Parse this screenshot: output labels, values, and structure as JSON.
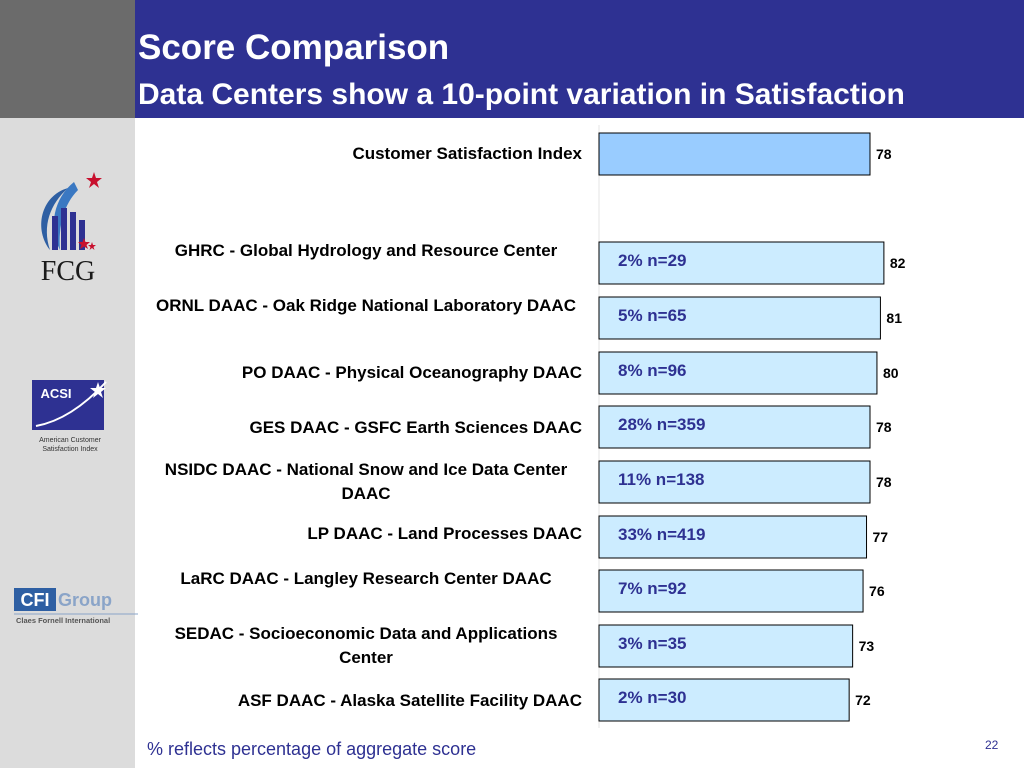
{
  "slide": {
    "title": "Score Comparison",
    "subtitle": "Data Centers show a 10-point variation in Satisfaction",
    "footnote": "% reflects percentage of aggregate score",
    "page_number": "22",
    "logos": {
      "fcg": "FCG",
      "acsi": "ACSI",
      "acsi_caption_1": "American Customer",
      "acsi_caption_2": "Satisfaction Index",
      "cfi_1": "CFI",
      "cfi_2": "Group",
      "cfi_caption": "Claes Fornell International"
    }
  },
  "colors": {
    "header": "#2e3192",
    "sidebar": "#dcdcdc",
    "csi_bar": "#99ccff",
    "center_bar": "#ccecff",
    "bar_border": "#000000",
    "inner_label": "#2e3192"
  },
  "chart_data": {
    "type": "bar",
    "orientation": "horizontal",
    "categories": [
      "Customer Satisfaction Index",
      "GHRC - Global Hydrology and Resource Center",
      "ORNL DAAC - Oak Ridge National Laboratory DAAC",
      "PO DAAC - Physical Oceanography DAAC",
      "GES DAAC - GSFC Earth Sciences DAAC",
      "NSIDC DAAC - National Snow and Ice Data Center DAAC",
      "LP DAAC - Land Processes DAAC",
      "LaRC DAAC - Langley Research Center DAAC",
      "SEDAC - Socioeconomic Data and Applications Center",
      "ASF DAAC - Alaska Satellite Facility DAAC"
    ],
    "values": [
      78,
      82,
      81,
      80,
      78,
      78,
      77,
      76,
      73,
      72
    ],
    "inner_labels": [
      "",
      "2% n=29",
      "5% n=65",
      "8% n=96",
      "28% n=359",
      "11% n=138",
      "33% n=419",
      "7% n=92",
      "3% n=35",
      "2% n=30"
    ],
    "xlim": [
      0,
      100
    ],
    "axis_labels_shown": false,
    "grid": false
  }
}
